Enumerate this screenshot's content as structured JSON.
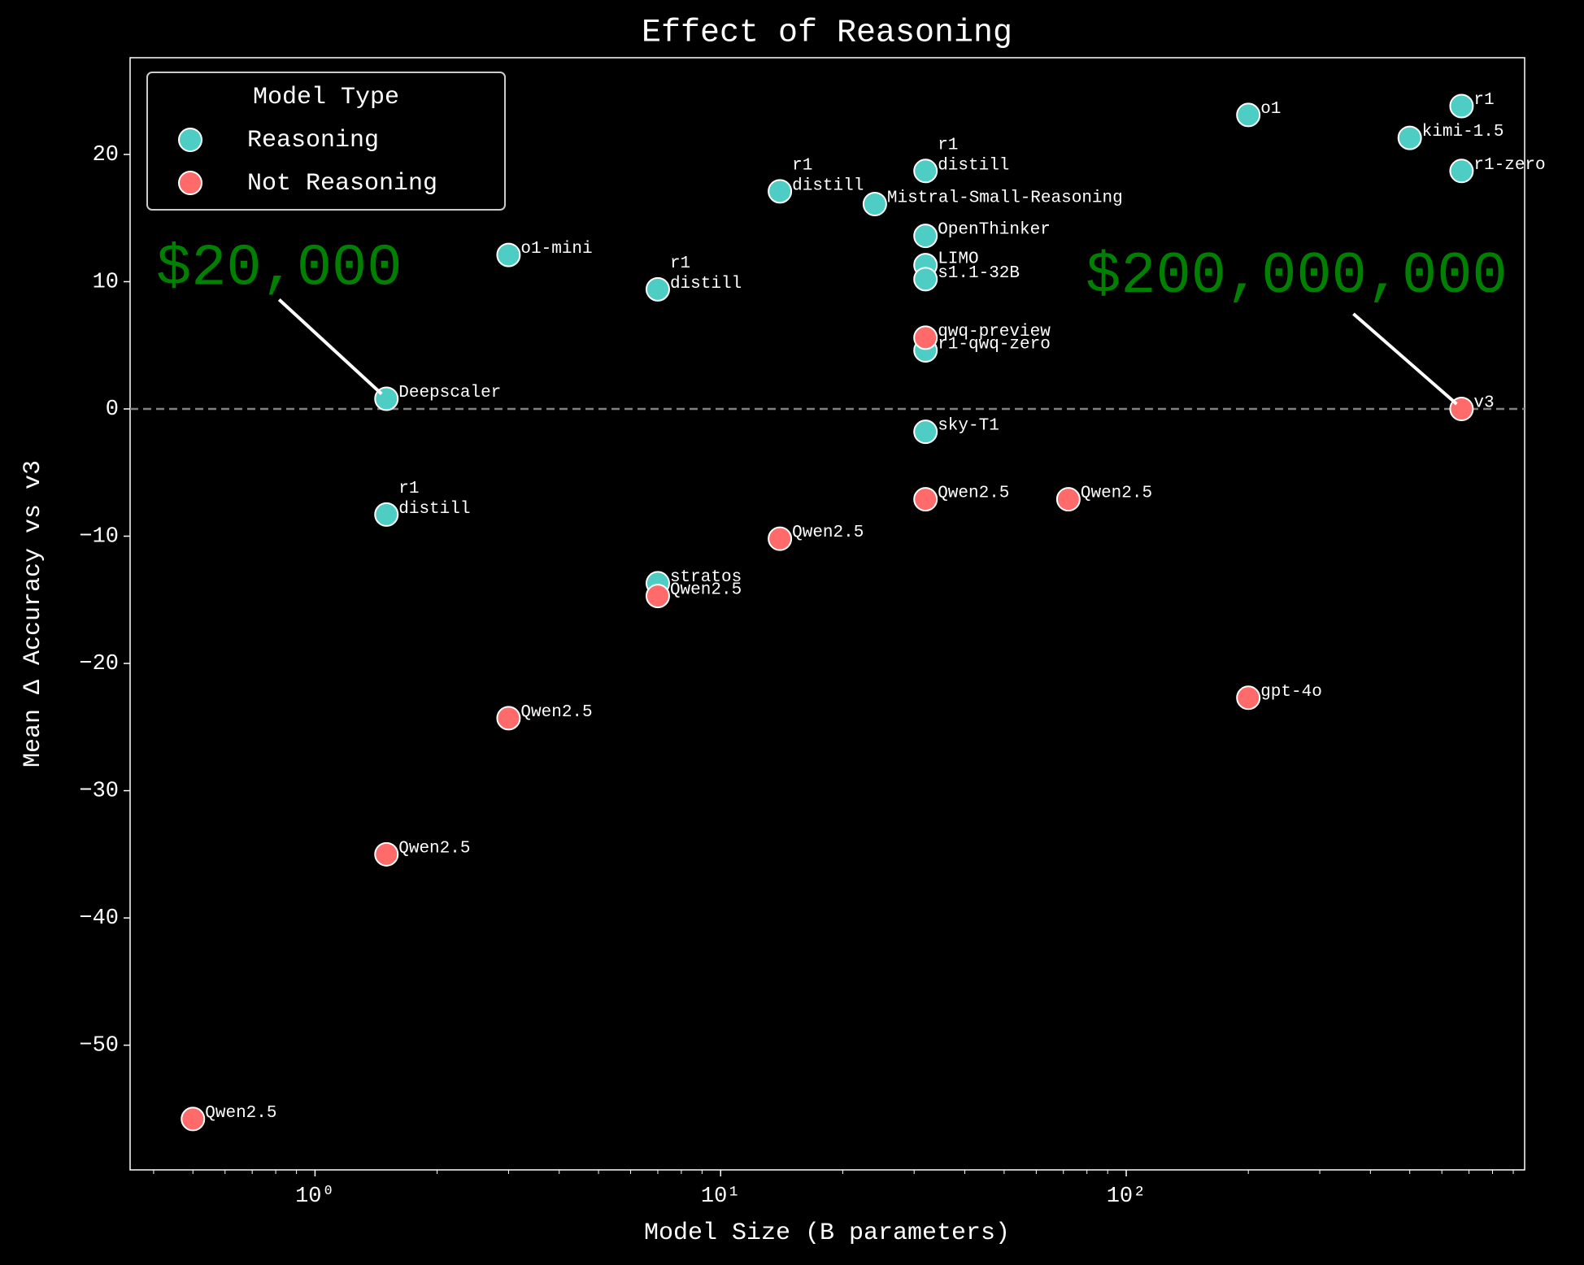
{
  "chart_data": {
    "type": "scatter",
    "title": "Effect of Reasoning",
    "x_label": "Model Size (B parameters)",
    "y_label": "Mean Δ Accuracy vs v3",
    "x_scale": "log",
    "xlim": [
      0.35,
      960
    ],
    "ylim": [
      -59.8,
      27.6
    ],
    "xticks": [
      {
        "value": 1,
        "label": "10⁰"
      },
      {
        "value": 10,
        "label": "10¹"
      },
      {
        "value": 100,
        "label": "10²"
      }
    ],
    "xminorticks": [
      0.4,
      0.5,
      0.6,
      0.7,
      0.8,
      0.9,
      2,
      3,
      4,
      5,
      6,
      7,
      8,
      9,
      20,
      30,
      40,
      50,
      60,
      70,
      80,
      90,
      200,
      300,
      400,
      500,
      600,
      700,
      800,
      900
    ],
    "yticks": [
      {
        "value": -50,
        "label": "−50"
      },
      {
        "value": -40,
        "label": "−40"
      },
      {
        "value": -30,
        "label": "−30"
      },
      {
        "value": -20,
        "label": "−20"
      },
      {
        "value": -10,
        "label": "−10"
      },
      0,
      10,
      20
    ],
    "reference_line": 0,
    "legend": {
      "title": "Model Type",
      "position": "upper left"
    },
    "series": [
      {
        "name": "Reasoning",
        "color": "#4ecdc4",
        "x": [
          1.5,
          1.5,
          3,
          7,
          7,
          14,
          24,
          32,
          32,
          32,
          32,
          32,
          32,
          200,
          671,
          500,
          671
        ],
        "values": [
          0.8,
          -8.3,
          12.1,
          9.4,
          -13.7,
          17.1,
          16.1,
          18.7,
          13.6,
          11.3,
          10.2,
          4.6,
          -1.8,
          23.1,
          23.8,
          21.3,
          18.7
        ],
        "labels": [
          "Deepscaler",
          "r1\ndistill",
          "o1-mini",
          "r1\ndistill",
          "stratos",
          "r1\ndistill",
          "Mistral-Small-Reasoning",
          "r1\ndistill",
          "OpenThinker",
          "LIMO",
          "s1.1-32B",
          "r1-qwq-zero",
          "sky-T1",
          "o1",
          "r1",
          "kimi-1.5",
          "r1-zero"
        ]
      },
      {
        "name": "Not Reasoning",
        "color": "#ff6b6b",
        "x": [
          0.5,
          1.5,
          3,
          7,
          14,
          32,
          32,
          72,
          200,
          671
        ],
        "values": [
          -55.8,
          -35,
          -24.3,
          -14.7,
          -10.2,
          5.6,
          -7.1,
          -7.1,
          -22.7,
          0
        ],
        "labels": [
          "Qwen2.5",
          "Qwen2.5",
          "Qwen2.5",
          "Qwen2.5",
          "Qwen2.5",
          "qwq-preview",
          "Qwen2.5",
          "Qwen2.5",
          "gpt-4o",
          "v3"
        ]
      }
    ],
    "annotations": [
      {
        "text": "$20,000",
        "xy": [
          1.5,
          0.8
        ],
        "color": "#008000"
      },
      {
        "text": "$200,000,000",
        "xy": [
          671,
          0
        ],
        "color": "#008000"
      }
    ]
  }
}
